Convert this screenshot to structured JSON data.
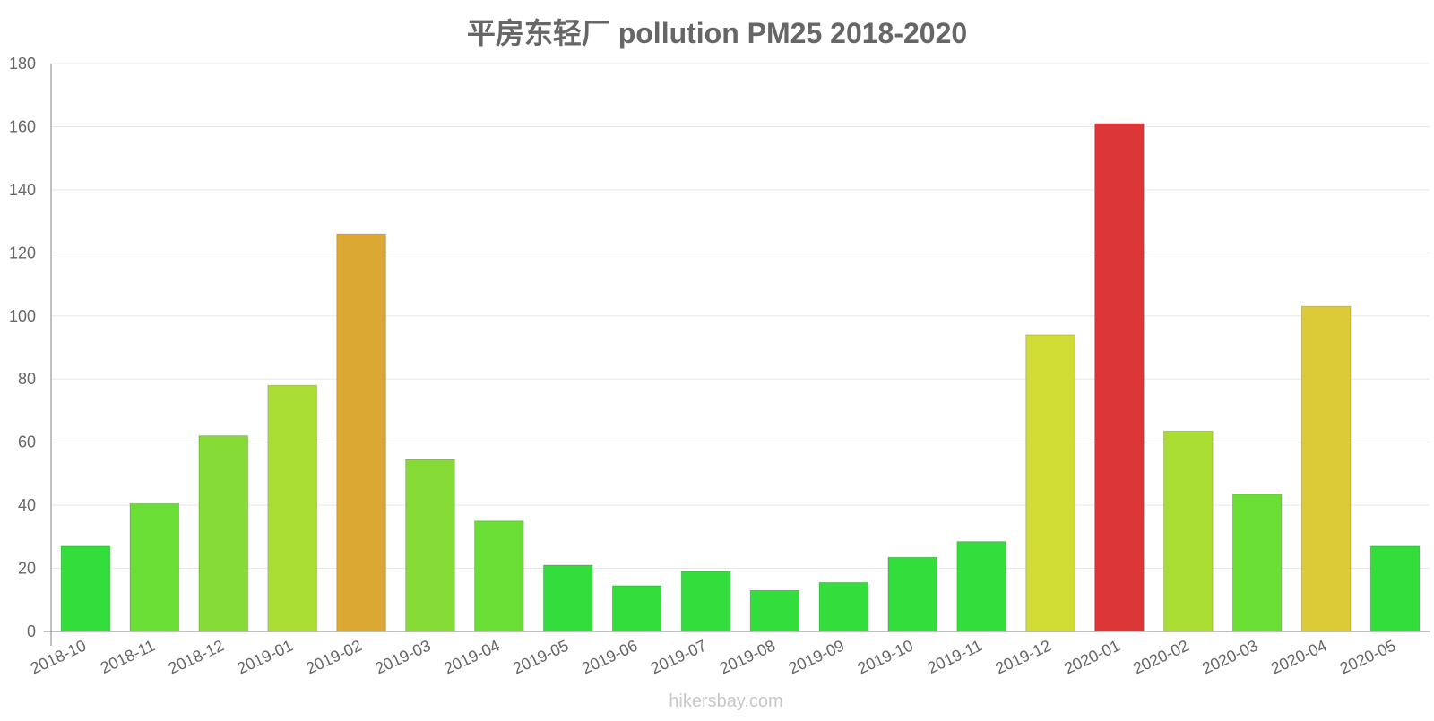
{
  "chart_data": {
    "type": "bar",
    "title": "平房东轻厂 pollution PM25 2018-2020",
    "xlabel": "",
    "ylabel": "",
    "ylim": [
      0,
      180
    ],
    "yticks": [
      0,
      20,
      40,
      60,
      80,
      100,
      120,
      140,
      160,
      180
    ],
    "grid": true,
    "categories": [
      "2018-10",
      "2018-11",
      "2018-12",
      "2019-01",
      "2019-02",
      "2019-03",
      "2019-04",
      "2019-05",
      "2019-06",
      "2019-07",
      "2019-08",
      "2019-09",
      "2019-10",
      "2019-11",
      "2019-12",
      "2020-01",
      "2020-02",
      "2020-03",
      "2020-04",
      "2020-05"
    ],
    "values": [
      27,
      40.5,
      62,
      78,
      126,
      54.5,
      35,
      21,
      14.5,
      19,
      13,
      15.5,
      23.5,
      28.5,
      94,
      161,
      63.5,
      43.5,
      103,
      27
    ],
    "colors": [
      "#33dd3c",
      "#6bde36",
      "#86db36",
      "#aadd33",
      "#dca834",
      "#86db36",
      "#6bde36",
      "#33dd3c",
      "#33dd3c",
      "#33dd3c",
      "#33dd3c",
      "#33dd3c",
      "#33dd3c",
      "#33dd3c",
      "#d1dc35",
      "#dd3636",
      "#aadd33",
      "#6bde36",
      "#dccb36",
      "#33dd3c"
    ]
  },
  "watermark": "hikersbay.com"
}
